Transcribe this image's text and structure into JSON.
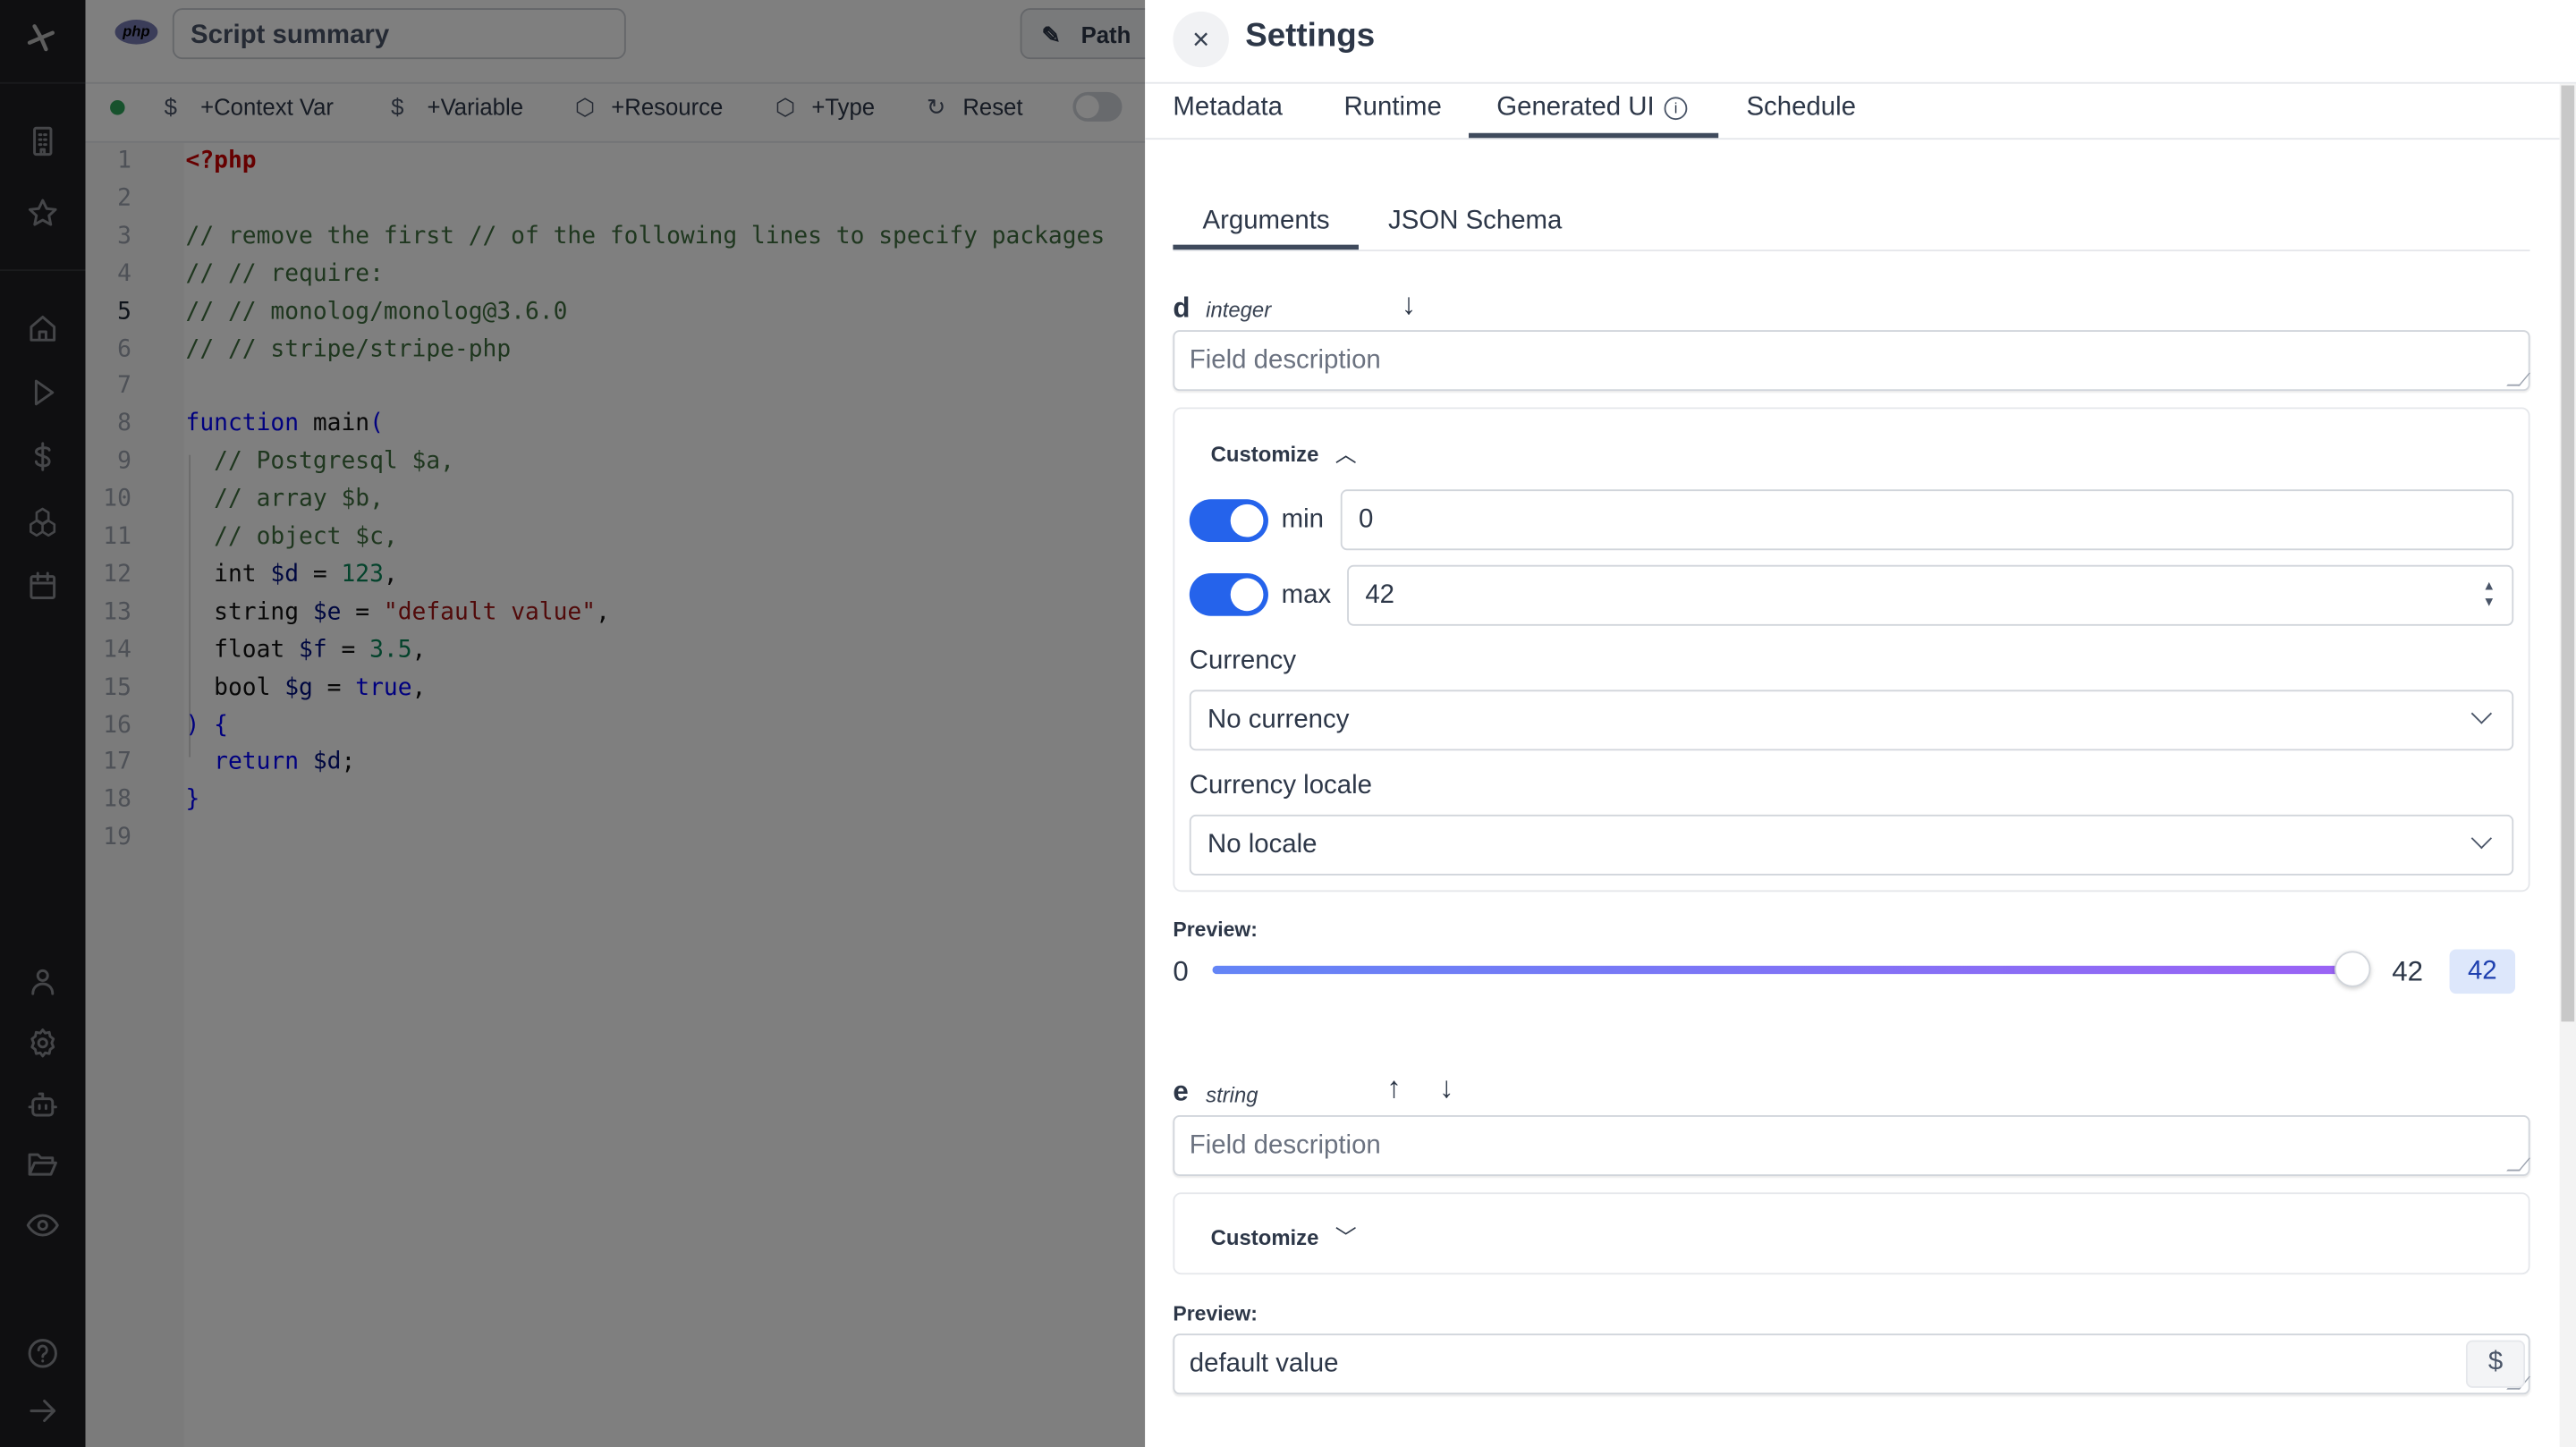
{
  "sidebar": {
    "icons": [
      "windmill-logo-icon",
      "building-icon",
      "star-icon",
      "home-icon",
      "play-icon",
      "dollar-icon",
      "resources-icon",
      "calendar-icon",
      "user-icon",
      "gear-icon",
      "robot-icon",
      "folder-icon",
      "eye-icon",
      "help-icon",
      "arrow-right-icon"
    ]
  },
  "editor": {
    "language_badge": "php",
    "summary_placeholder": "Script summary",
    "path_label": "Path",
    "toolbar": [
      {
        "icon": "dollar-icon",
        "label": "+Context Var"
      },
      {
        "icon": "dollar-icon",
        "label": "+Variable"
      },
      {
        "icon": "package-icon",
        "label": "+Resource"
      },
      {
        "icon": "package-icon",
        "label": "+Type"
      },
      {
        "icon": "reset-icon",
        "label": "Reset"
      }
    ],
    "current_line": 5,
    "lines": [
      [
        [
          "k-php",
          "<?php"
        ]
      ],
      [],
      [
        [
          "k-cm",
          "// remove the first // of the following lines to specify packages"
        ]
      ],
      [
        [
          "k-cm",
          "// // require:"
        ]
      ],
      [
        [
          "k-cm",
          "// // monolog/monolog@3.6.0"
        ]
      ],
      [
        [
          "k-cm",
          "// // stripe/stripe-php"
        ]
      ],
      [],
      [
        [
          "k-kw",
          "function"
        ],
        [
          "k-pl",
          " main"
        ],
        [
          "k-kw",
          "("
        ]
      ],
      [
        [
          "k-cm",
          "  // Postgresql $a,"
        ]
      ],
      [
        [
          "k-cm",
          "  // array $b,"
        ]
      ],
      [
        [
          "k-cm",
          "  // object $c,"
        ]
      ],
      [
        [
          "k-pl",
          "  int "
        ],
        [
          "k-var",
          "$d"
        ],
        [
          "k-pl",
          " = "
        ],
        [
          "k-num",
          "123"
        ],
        [
          "k-pl",
          ","
        ]
      ],
      [
        [
          "k-pl",
          "  string "
        ],
        [
          "k-var",
          "$e"
        ],
        [
          "k-pl",
          " = "
        ],
        [
          "k-str",
          "\"default value\""
        ],
        [
          "k-pl",
          ","
        ]
      ],
      [
        [
          "k-pl",
          "  float "
        ],
        [
          "k-var",
          "$f"
        ],
        [
          "k-pl",
          " = "
        ],
        [
          "k-num",
          "3.5"
        ],
        [
          "k-pl",
          ","
        ]
      ],
      [
        [
          "k-pl",
          "  bool "
        ],
        [
          "k-var",
          "$g"
        ],
        [
          "k-pl",
          " = "
        ],
        [
          "k-kw",
          "true"
        ],
        [
          "k-pl",
          ","
        ]
      ],
      [
        [
          "k-kw",
          ") {"
        ]
      ],
      [
        [
          "k-kw",
          "  return "
        ],
        [
          "k-var",
          "$d"
        ],
        [
          "k-pl",
          ";"
        ]
      ],
      [
        [
          "k-kw",
          "}"
        ]
      ],
      []
    ]
  },
  "settings": {
    "title": "Settings",
    "close_label": "×",
    "tabs": [
      "Metadata",
      "Runtime",
      "Generated UI",
      "Schedule"
    ],
    "active_tab": "Generated UI",
    "subtabs": [
      "Arguments",
      "JSON Schema"
    ],
    "active_subtab": "Arguments",
    "args": [
      {
        "name": "d",
        "type": "integer",
        "description_placeholder": "Field description",
        "customize_label": "Customize",
        "customize_expanded": true,
        "min_enabled": true,
        "min_label": "min",
        "min_value": "0",
        "max_enabled": true,
        "max_label": "max",
        "max_value": "42",
        "currency_label": "Currency",
        "currency_value": "No currency",
        "locale_label": "Currency locale",
        "locale_value": "No locale",
        "preview_label": "Preview:",
        "slider_min": "0",
        "slider_max": "42",
        "slider_value": "42",
        "slider_fraction": 1.0
      },
      {
        "name": "e",
        "type": "string",
        "description_placeholder": "Field description",
        "customize_label": "Customize",
        "customize_expanded": false,
        "preview_label": "Preview:",
        "preview_value": "default value",
        "variable_button": "$"
      }
    ]
  },
  "colors": {
    "accent": "#2563eb",
    "slider_start": "#6485f6",
    "slider_end": "#9b63f5",
    "badge_bg": "#dde7fb"
  }
}
